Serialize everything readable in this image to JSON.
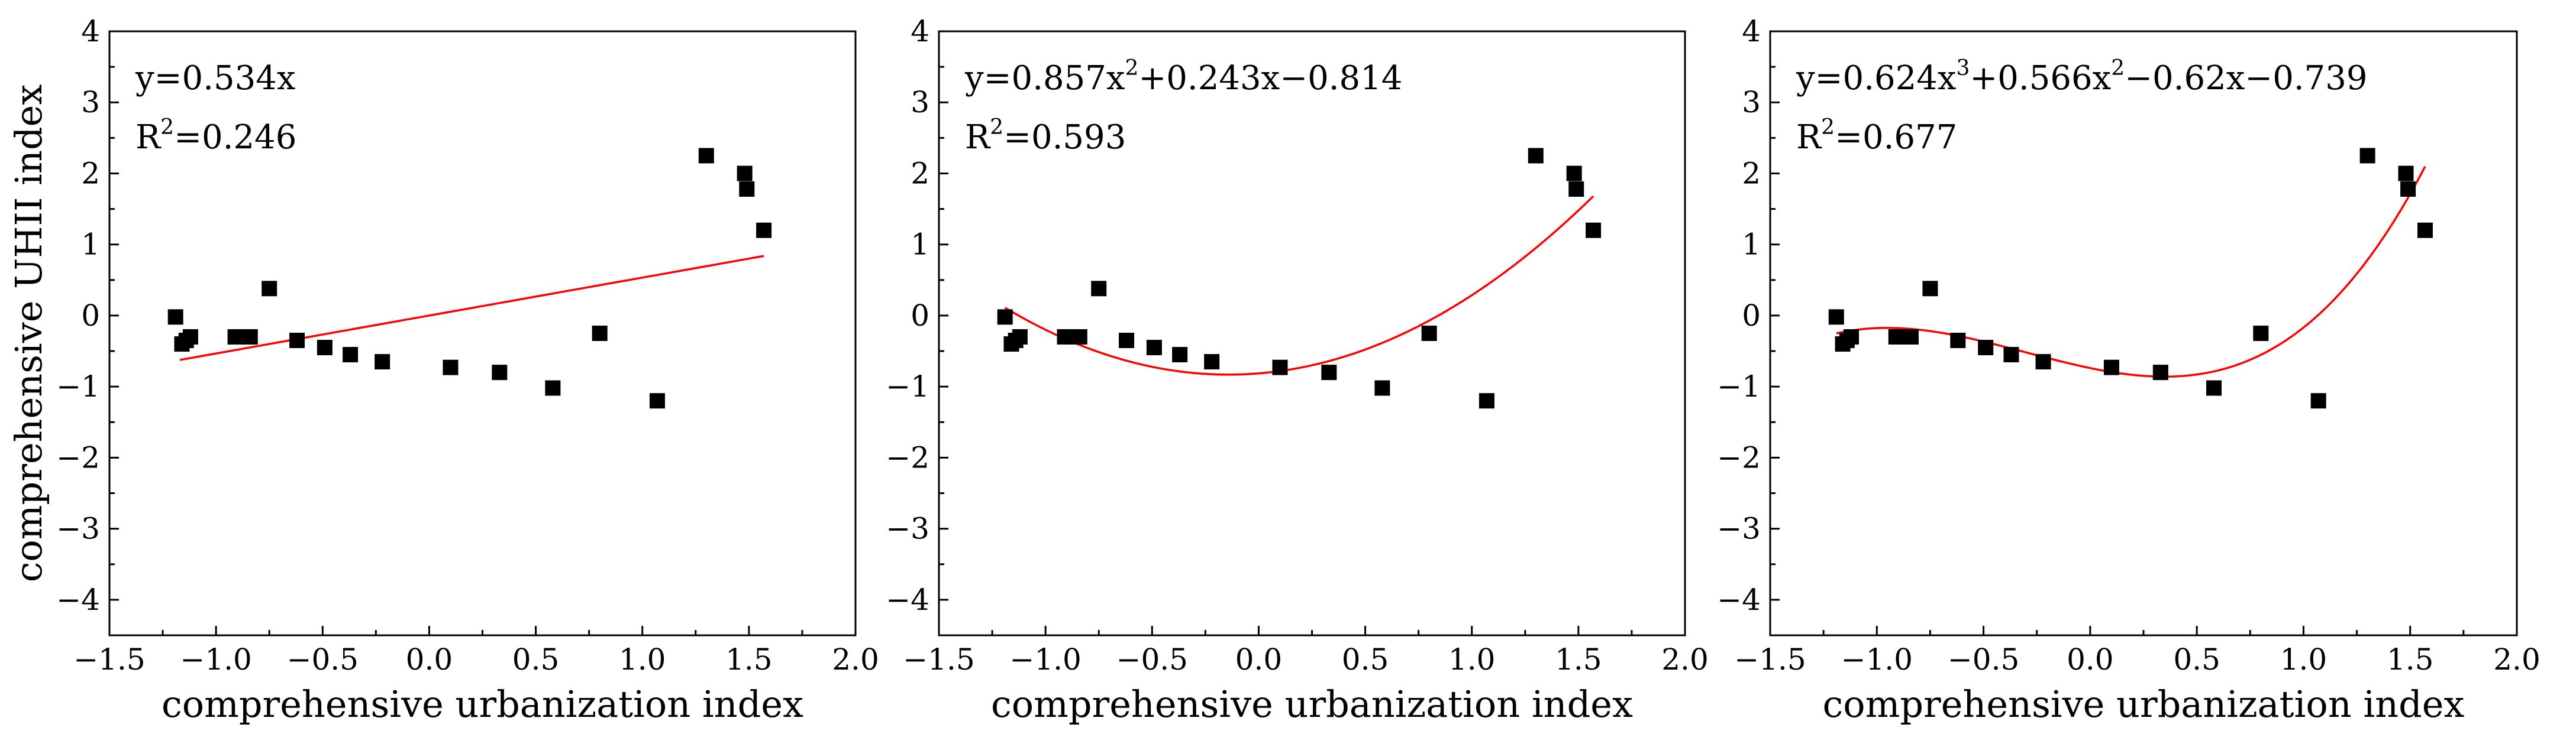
{
  "chart_data": [
    {
      "type": "scatter",
      "xlabel": "comprehensive urbanization index",
      "ylabel": "comprehensive UHII index",
      "xlim": [
        -1.5,
        2.0
      ],
      "ylim": [
        -4.5,
        4.0
      ],
      "xticks": [
        "−1.5",
        "−1.0",
        "−0.5",
        "0.0",
        "0.5",
        "1.0",
        "1.5",
        "2.0"
      ],
      "yticks": [
        "−4",
        "−3",
        "−2",
        "−1",
        "0",
        "1",
        "2",
        "3",
        "4"
      ],
      "grid": false,
      "equation": {
        "prefix": "y=0.534x",
        "parts": []
      },
      "r2": {
        "base": "R",
        "sup": "2",
        "value": "=0.246"
      },
      "fit": {
        "kind": "poly",
        "coef": [
          0,
          0.534
        ],
        "x_range": [
          -1.17,
          1.57
        ],
        "color": "#ff0000"
      },
      "points": {
        "x": [
          -1.19,
          -1.16,
          -1.14,
          -1.12,
          -0.91,
          -0.84,
          -0.75,
          -0.62,
          -0.49,
          -0.37,
          -0.22,
          0.1,
          0.33,
          0.58,
          0.8,
          1.07,
          1.3,
          1.48,
          1.49,
          1.57
        ],
        "y": [
          -0.02,
          -0.4,
          -0.35,
          -0.3,
          -0.3,
          -0.3,
          0.38,
          -0.35,
          -0.45,
          -0.55,
          -0.65,
          -0.73,
          -0.8,
          -1.02,
          -0.25,
          -1.2,
          2.25,
          2.0,
          1.78,
          1.2
        ]
      }
    },
    {
      "type": "scatter",
      "xlabel": "comprehensive urbanization index",
      "ylabel": "",
      "xlim": [
        -1.5,
        2.0
      ],
      "ylim": [
        -4.5,
        4.0
      ],
      "xticks": [
        "−1.5",
        "−1.0",
        "−0.5",
        "0.0",
        "0.5",
        "1.0",
        "1.5",
        "2.0"
      ],
      "yticks": [
        "−4",
        "−3",
        "−2",
        "−1",
        "0",
        "1",
        "2",
        "3",
        "4"
      ],
      "grid": false,
      "equation": {
        "prefix": "y=0.857x",
        "parts": [
          {
            "sup": "2",
            "text": "+0.243x−0.814"
          }
        ]
      },
      "r2": {
        "base": "R",
        "sup": "2",
        "value": "=0.593"
      },
      "fit": {
        "kind": "poly",
        "coef": [
          -0.814,
          0.243,
          0.857
        ],
        "x_range": [
          -1.19,
          1.57
        ],
        "color": "#ff0000"
      },
      "points": {
        "x": [
          -1.19,
          -1.16,
          -1.14,
          -1.12,
          -0.91,
          -0.84,
          -0.75,
          -0.62,
          -0.49,
          -0.37,
          -0.22,
          0.1,
          0.33,
          0.58,
          0.8,
          1.07,
          1.3,
          1.48,
          1.49,
          1.57
        ],
        "y": [
          -0.02,
          -0.4,
          -0.35,
          -0.3,
          -0.3,
          -0.3,
          0.38,
          -0.35,
          -0.45,
          -0.55,
          -0.65,
          -0.73,
          -0.8,
          -1.02,
          -0.25,
          -1.2,
          2.25,
          2.0,
          1.78,
          1.2
        ]
      }
    },
    {
      "type": "scatter",
      "xlabel": "comprehensive urbanization index",
      "ylabel": "",
      "xlim": [
        -1.5,
        2.0
      ],
      "ylim": [
        -4.5,
        4.0
      ],
      "xticks": [
        "−1.5",
        "−1.0",
        "−0.5",
        "0.0",
        "0.5",
        "1.0",
        "1.5",
        "2.0"
      ],
      "yticks": [
        "−4",
        "−3",
        "−2",
        "−1",
        "0",
        "1",
        "2",
        "3",
        "4"
      ],
      "grid": false,
      "equation": {
        "prefix": "y=0.624x",
        "parts": [
          {
            "sup": "3",
            "text": "+0.566x"
          },
          {
            "sup": "2",
            "text": "−0.62x−0.739"
          }
        ]
      },
      "r2": {
        "base": "R",
        "sup": "2",
        "value": "=0.677"
      },
      "fit": {
        "kind": "poly",
        "coef": [
          -0.739,
          -0.62,
          0.566,
          0.624
        ],
        "x_range": [
          -1.19,
          1.57
        ],
        "color": "#ff0000"
      },
      "points": {
        "x": [
          -1.19,
          -1.16,
          -1.14,
          -1.12,
          -0.91,
          -0.84,
          -0.75,
          -0.62,
          -0.49,
          -0.37,
          -0.22,
          0.1,
          0.33,
          0.58,
          0.8,
          1.07,
          1.3,
          1.48,
          1.49,
          1.57
        ],
        "y": [
          -0.02,
          -0.4,
          -0.35,
          -0.3,
          -0.3,
          -0.3,
          0.38,
          -0.35,
          -0.45,
          -0.55,
          -0.65,
          -0.73,
          -0.8,
          -1.02,
          -0.25,
          -1.2,
          2.25,
          2.0,
          1.78,
          1.2
        ]
      }
    }
  ]
}
